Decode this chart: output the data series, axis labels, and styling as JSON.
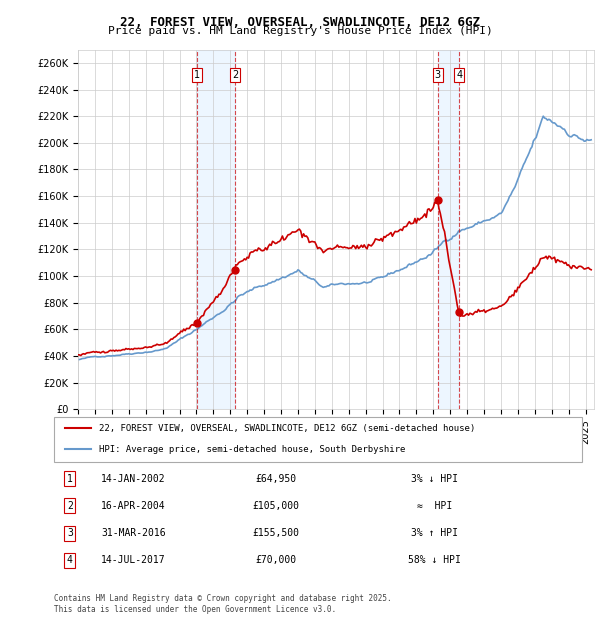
{
  "title": "22, FOREST VIEW, OVERSEAL, SWADLINCOTE, DE12 6GZ",
  "subtitle": "Price paid vs. HM Land Registry's House Price Index (HPI)",
  "ylabel_ticks": [
    "£0",
    "£20K",
    "£40K",
    "£60K",
    "£80K",
    "£100K",
    "£120K",
    "£140K",
    "£160K",
    "£180K",
    "£200K",
    "£220K",
    "£240K",
    "£260K"
  ],
  "ylim": [
    0,
    270000
  ],
  "xlim_start": 1995.0,
  "xlim_end": 2025.5,
  "hpi_color": "#6699cc",
  "price_color": "#cc0000",
  "sale_color": "#cc0000",
  "legend_items": [
    "22, FOREST VIEW, OVERSEAL, SWADLINCOTE, DE12 6GZ (semi-detached house)",
    "HPI: Average price, semi-detached house, South Derbyshire"
  ],
  "sales": [
    {
      "num": 1,
      "date_str": "14-JAN-2002",
      "price": 64950,
      "date_x": 2002.04,
      "pct": "3%",
      "dir": "↓",
      "rel": "HPI"
    },
    {
      "num": 2,
      "date_str": "16-APR-2004",
      "price": 105000,
      "date_x": 2004.29,
      "pct": "≈",
      "dir": "",
      "rel": "HPI"
    },
    {
      "num": 3,
      "date_str": "31-MAR-2016",
      "price": 155500,
      "date_x": 2016.25,
      "pct": "3%",
      "dir": "↑",
      "rel": "HPI"
    },
    {
      "num": 4,
      "date_str": "14-JUL-2017",
      "price": 70000,
      "date_x": 2017.54,
      "pct": "58%",
      "dir": "↓",
      "rel": "HPI"
    }
  ],
  "footer": "Contains HM Land Registry data © Crown copyright and database right 2025.\nThis data is licensed under the Open Government Licence v3.0.",
  "background_color": "#ffffff",
  "grid_color": "#cccccc",
  "shade_color": "#ddeeff"
}
